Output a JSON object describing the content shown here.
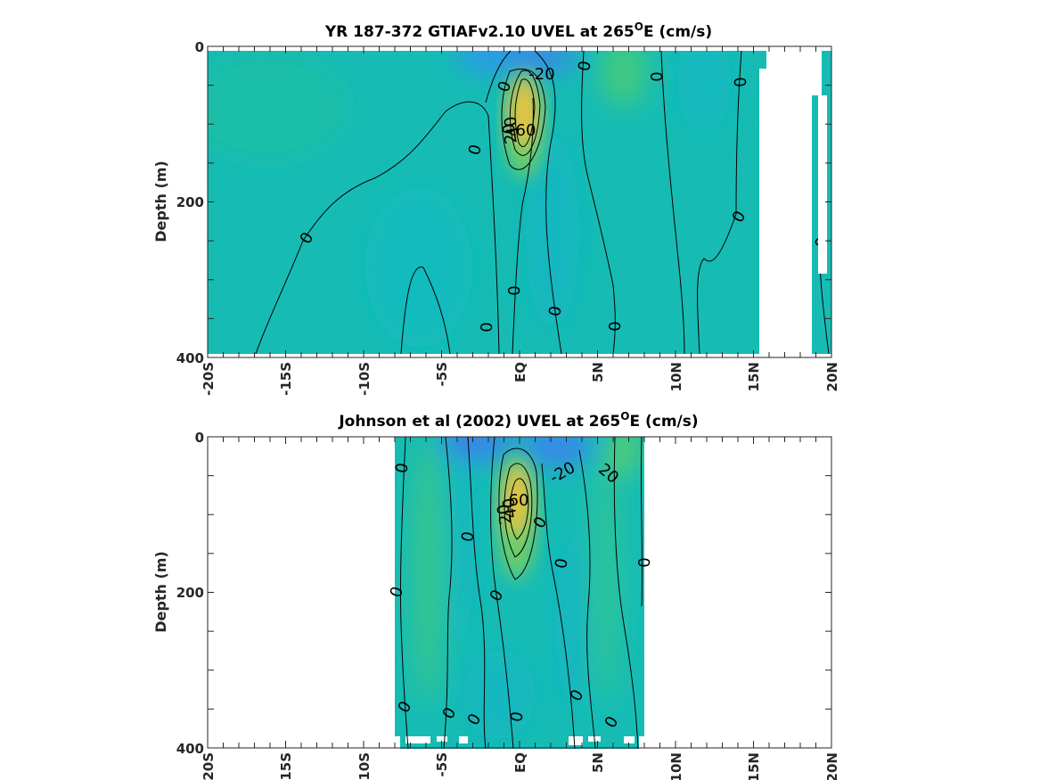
{
  "chart_data": [
    {
      "type": "heatmap",
      "title": "YR 187-372 GTIAFv2.10 UVEL at 265",
      "title_sup": "O",
      "title_tail": "E (cm/s)",
      "ylabel": "Depth (m)",
      "ylim": [
        0,
        400
      ],
      "xlim": [
        -20,
        20
      ],
      "y_ticks": [
        "0",
        "200",
        "400"
      ],
      "x_ticks": [
        "-20S",
        "-15S",
        "-10S",
        "-5S",
        "EQ",
        "5N",
        "10N",
        "15N",
        "20N"
      ],
      "colormap": [
        "#3d7cf0",
        "#1faee0",
        "#11bfb8",
        "#45cc78",
        "#fbbb36",
        "#f6e42a"
      ],
      "contour_labels": [
        "-20",
        "0",
        "0",
        "0",
        "0",
        "0",
        "0",
        "0",
        "0",
        "0",
        "0",
        "0",
        "20",
        "40",
        "60"
      ],
      "features": {
        "undercurrent_core_speed": 60,
        "undercurrent_core_lat": 0,
        "undercurrent_core_depth": 100,
        "surface_westward_min": -20,
        "missing_lat_range": [
          15.5,
          20
        ]
      }
    },
    {
      "type": "heatmap",
      "title": "Johnson et al (2002) UVEL at 265",
      "title_sup": "O",
      "title_tail": "E (cm/s)",
      "ylabel": "Depth (m)",
      "ylim": [
        0,
        400
      ],
      "xlim": [
        -20,
        20
      ],
      "y_ticks": [
        "0",
        "200",
        "400"
      ],
      "x_ticks": [
        "-20S",
        "-15S",
        "-10S",
        "-5S",
        "EQ",
        "5N",
        "10N",
        "15N",
        "20N"
      ],
      "colormap": [
        "#3d7cf0",
        "#1faee0",
        "#11bfb8",
        "#45cc78",
        "#fbbb36",
        "#f6e42a"
      ],
      "contour_labels": [
        "0",
        "0",
        "0",
        "0",
        "0",
        "0",
        "0",
        "0",
        "0",
        "0",
        "0",
        "0",
        "0",
        "-20",
        "20",
        "20",
        "40",
        "60"
      ],
      "features": {
        "undercurrent_core_speed": 60,
        "undercurrent_core_lat": 0,
        "undercurrent_core_depth": 80,
        "data_lat_range": [
          -8,
          8
        ]
      }
    }
  ]
}
